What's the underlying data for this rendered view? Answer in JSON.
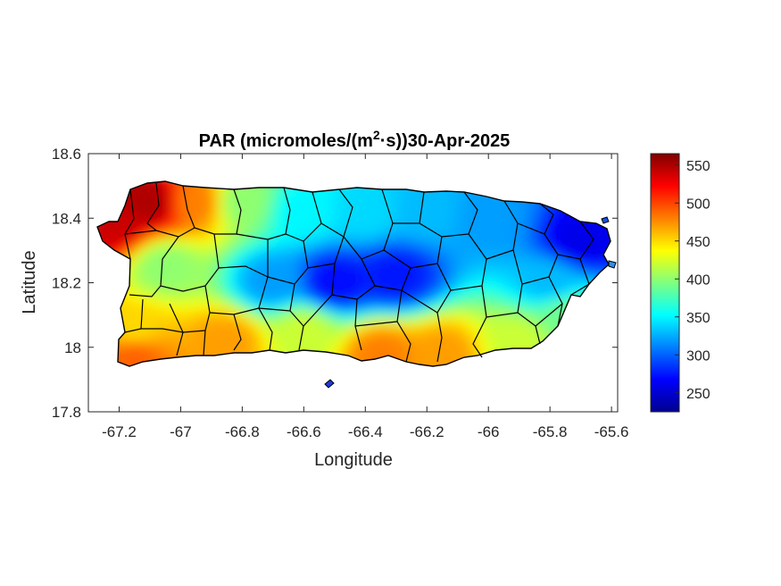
{
  "figure": {
    "title_main": "PAR (micromoles/(m",
    "title_sup": "2",
    "title_tail": "·s))30-Apr-2025",
    "xlabel": "Longitude",
    "ylabel": "Latitude"
  },
  "chart_data": {
    "type": "heatmap",
    "title": "PAR (micromoles/(m2·s))30-Apr-2025",
    "xlabel": "Longitude",
    "ylabel": "Latitude",
    "xlim": [
      -67.3,
      -65.58
    ],
    "ylim": [
      17.8,
      18.6
    ],
    "xticks": [
      -67.2,
      -67,
      -66.8,
      -66.6,
      -66.4,
      -66.2,
      -66,
      -65.8,
      -65.6
    ],
    "xtick_labels": [
      "-67.2",
      "-67",
      "-66.8",
      "-66.6",
      "-66.4",
      "-66.2",
      "-66",
      "-65.8",
      "-65.6"
    ],
    "yticks": [
      17.8,
      18,
      18.2,
      18.4,
      18.6
    ],
    "ytick_labels": [
      "17.8",
      "18",
      "18.2",
      "18.4",
      "18.6"
    ],
    "colorbar": {
      "colormap": "jet",
      "clim": [
        225,
        565
      ],
      "ticks": [
        250,
        300,
        350,
        400,
        450,
        500,
        550
      ],
      "tick_labels": [
        "250",
        "300",
        "350",
        "400",
        "450",
        "500",
        "550"
      ]
    },
    "field_anchors": [
      {
        "lon": -67.1,
        "lat": 18.45,
        "value": 550
      },
      {
        "lon": -67.22,
        "lat": 18.38,
        "value": 540
      },
      {
        "lon": -66.95,
        "lat": 18.45,
        "value": 480
      },
      {
        "lon": -66.8,
        "lat": 18.45,
        "value": 400
      },
      {
        "lon": -66.6,
        "lat": 18.42,
        "value": 350
      },
      {
        "lon": -66.4,
        "lat": 18.42,
        "value": 340
      },
      {
        "lon": -66.2,
        "lat": 18.42,
        "value": 330
      },
      {
        "lon": -66.0,
        "lat": 18.4,
        "value": 320
      },
      {
        "lon": -65.7,
        "lat": 18.33,
        "value": 260
      },
      {
        "lon": -66.5,
        "lat": 18.2,
        "value": 270
      },
      {
        "lon": -66.3,
        "lat": 18.22,
        "value": 275
      },
      {
        "lon": -66.7,
        "lat": 18.2,
        "value": 320
      },
      {
        "lon": -67.05,
        "lat": 18.25,
        "value": 400
      },
      {
        "lon": -67.15,
        "lat": 18.05,
        "value": 450
      },
      {
        "lon": -67.15,
        "lat": 17.98,
        "value": 490
      },
      {
        "lon": -66.85,
        "lat": 18.02,
        "value": 470
      },
      {
        "lon": -66.6,
        "lat": 18.05,
        "value": 420
      },
      {
        "lon": -66.35,
        "lat": 17.98,
        "value": 480
      },
      {
        "lon": -66.15,
        "lat": 17.98,
        "value": 470
      },
      {
        "lon": -65.9,
        "lat": 18.02,
        "value": 420
      },
      {
        "lon": -65.75,
        "lat": 18.1,
        "value": 390
      },
      {
        "lon": -65.8,
        "lat": 18.2,
        "value": 330
      }
    ]
  }
}
